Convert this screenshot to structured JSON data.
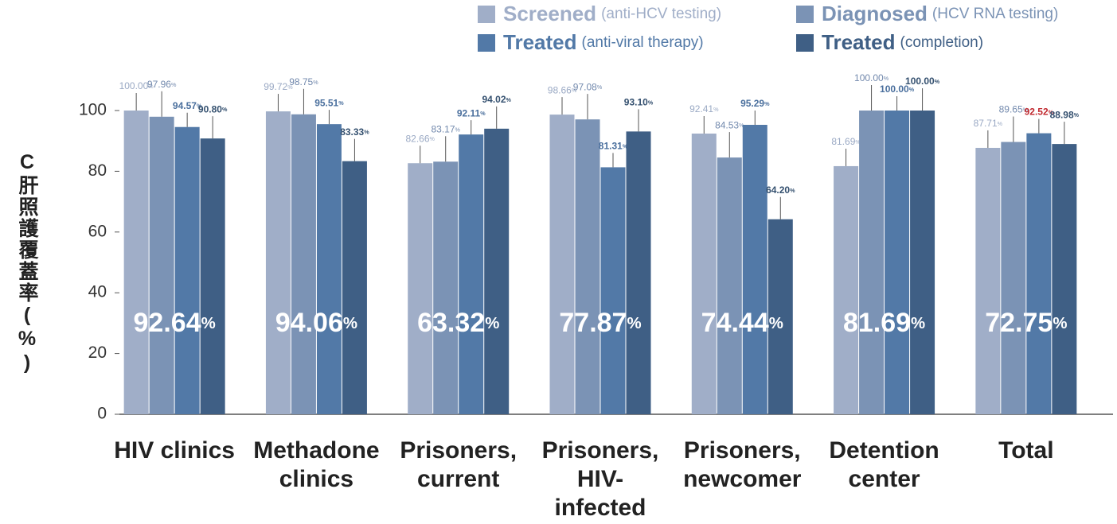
{
  "chart_data": {
    "type": "bar",
    "y_label": "C肝照護覆蓋率(%)",
    "categories": [
      "HIV clinics",
      "Methadone clinics",
      "Prisoners, current",
      "Prisoners, HIV-infected",
      "Prisoners, newcomer",
      "Detention center",
      "Total"
    ],
    "group_labels": [
      "92.64%",
      "94.06%",
      "63.32%",
      "77.87%",
      "74.44%",
      "81.69%",
      "72.75%"
    ],
    "series": [
      {
        "name": "Screened",
        "note": "(anti-HCV testing)",
        "color": "#a0aec8",
        "label_color": "#9aa9c4",
        "values": [
          100,
          99.72,
          82.66,
          98.66,
          92.41,
          81.69,
          87.71
        ],
        "value_labels": [
          "100.00%",
          "99.72%",
          "82.66%",
          "98.66%",
          "92.41%",
          "81.69%",
          "87.71%"
        ]
      },
      {
        "name": "Diagnosed",
        "note": "(HCV RNA testing)",
        "color": "#7b93b5",
        "label_color": "#7289ad",
        "values": [
          97.96,
          98.75,
          83.17,
          97.08,
          84.53,
          100,
          89.65
        ],
        "value_labels": [
          "97.96%",
          "98.75%",
          "83.17%",
          "97.08%",
          "84.53%",
          "100.00%",
          "89.65%"
        ]
      },
      {
        "name": "Treated",
        "note": "(anti-viral therapy)",
        "color": "#5279a7",
        "label_color": "#4a6f9d",
        "values": [
          94.57,
          95.51,
          92.11,
          81.31,
          95.29,
          100,
          92.52
        ],
        "value_labels": [
          "94.57%",
          "95.51%",
          "92.11%",
          "81.31%",
          "95.29%",
          "100.00%",
          "92.52%"
        ]
      },
      {
        "name": "Treated",
        "note": "(completion)",
        "color": "#3f5f85",
        "label_color": "#34506f",
        "values": [
          90.8,
          83.33,
          94.02,
          93.1,
          64.2,
          100,
          88.98
        ],
        "value_labels": [
          "90.80%",
          "83.33%",
          "94.02%",
          "93.10%",
          "64.20%",
          "100.00%",
          "88.98%"
        ]
      }
    ],
    "highlight": {
      "series": 2,
      "index": 6,
      "color": "#c0272d"
    },
    "ylim": [
      0,
      100
    ],
    "yticks": [
      0,
      20,
      40,
      60,
      80,
      100
    ],
    "grid": false
  }
}
